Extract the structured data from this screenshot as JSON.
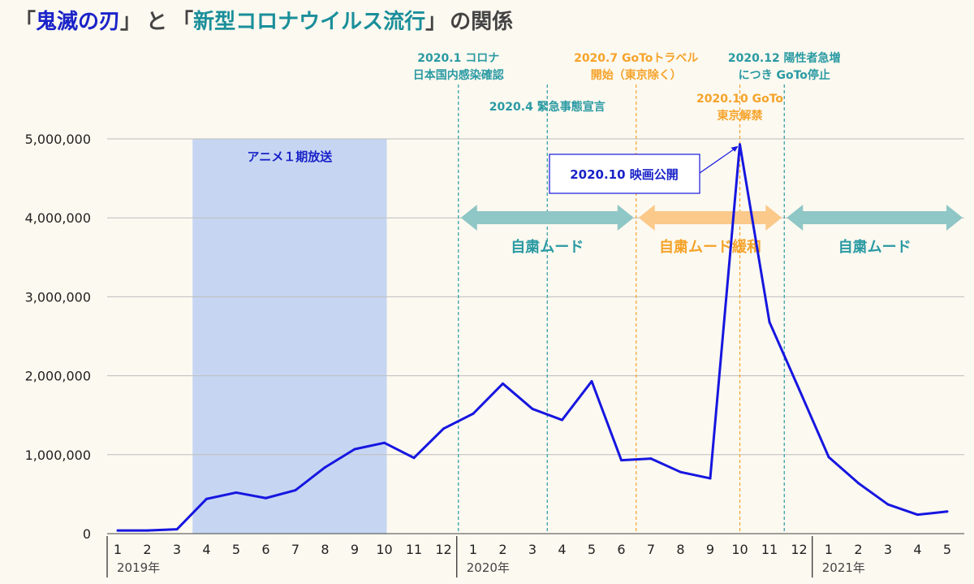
{
  "title_parts": {
    "open1": "「",
    "kimetsu": "鬼滅の刃",
    "close1": "」",
    "to": "と",
    "open2": "「",
    "corona": "新型コロナウイルス流行",
    "close2": "」",
    "relation": "の関係"
  },
  "colors": {
    "title_gray": "#444444",
    "kimetsu_blue": "#1a23c8",
    "corona_teal": "#1a8f9a",
    "line": "#1616e0",
    "anime_band": "#c6d6f2",
    "teal_event": "#2a9aa3",
    "orange_event": "#f5a32a",
    "teal_arrow": "#8fc6c6",
    "orange_arrow": "#fbc98a",
    "grid": "#bdbdbd"
  },
  "chart_data": {
    "type": "line",
    "ylim": [
      0,
      5000000
    ],
    "yticks": [
      "0",
      "1,000,000",
      "2,000,000",
      "3,000,000",
      "4,000,000",
      "5,000,000"
    ],
    "ytick_values": [
      0,
      1000000,
      2000000,
      3000000,
      4000000,
      5000000
    ],
    "x_labels": [
      "1",
      "2",
      "3",
      "4",
      "5",
      "6",
      "7",
      "8",
      "9",
      "10",
      "11",
      "12",
      "1",
      "2",
      "3",
      "4",
      "5",
      "6",
      "7",
      "8",
      "9",
      "10",
      "11",
      "12",
      "1",
      "2",
      "3",
      "4",
      "5"
    ],
    "years": [
      {
        "label": "2019年",
        "start_index": 0
      },
      {
        "label": "2020年",
        "start_index": 12
      },
      {
        "label": "2021年",
        "start_index": 24
      }
    ],
    "values": [
      40000,
      40000,
      55000,
      440000,
      520000,
      450000,
      550000,
      840000,
      1070000,
      1150000,
      960000,
      1330000,
      1520000,
      1900000,
      1580000,
      1440000,
      1930000,
      930000,
      950000,
      780000,
      700000,
      4930000,
      2680000,
      1830000,
      970000,
      640000,
      370000,
      240000,
      280000
    ],
    "anime_band": {
      "label": "アニメ１期放送",
      "from_index": 3,
      "to_index": 9
    },
    "event_lines": [
      {
        "index": 12,
        "color": "teal",
        "lines": [
          "2020.1 コロナ",
          "日本国内感染確認"
        ]
      },
      {
        "index": 15,
        "color": "teal",
        "lines": [
          "2020.4 緊急事態宣言"
        ]
      },
      {
        "index": 18,
        "color": "orange",
        "lines": [
          "2020.7 GoToトラベル",
          "開始（東京除く）"
        ]
      },
      {
        "index": 21,
        "color": "orange",
        "lines": [
          "2020.10 GoTo",
          "東京解禁"
        ]
      },
      {
        "index": 23,
        "color": "teal",
        "lines": [
          "2020.12 陽性者急増",
          "につき GoTo停止"
        ]
      }
    ],
    "mood_arrows": [
      {
        "from_index": 12,
        "to_index": 18,
        "color": "teal",
        "label": "自粛ムード"
      },
      {
        "from_index": 18,
        "to_index": 23,
        "color": "orange",
        "label": "自粛ムード緩和"
      },
      {
        "from_index": 23,
        "to_index": 28,
        "color": "teal",
        "label": "自粛ムード"
      }
    ],
    "callout": {
      "text": "2020.10 映画公開",
      "point_index": 21
    }
  }
}
